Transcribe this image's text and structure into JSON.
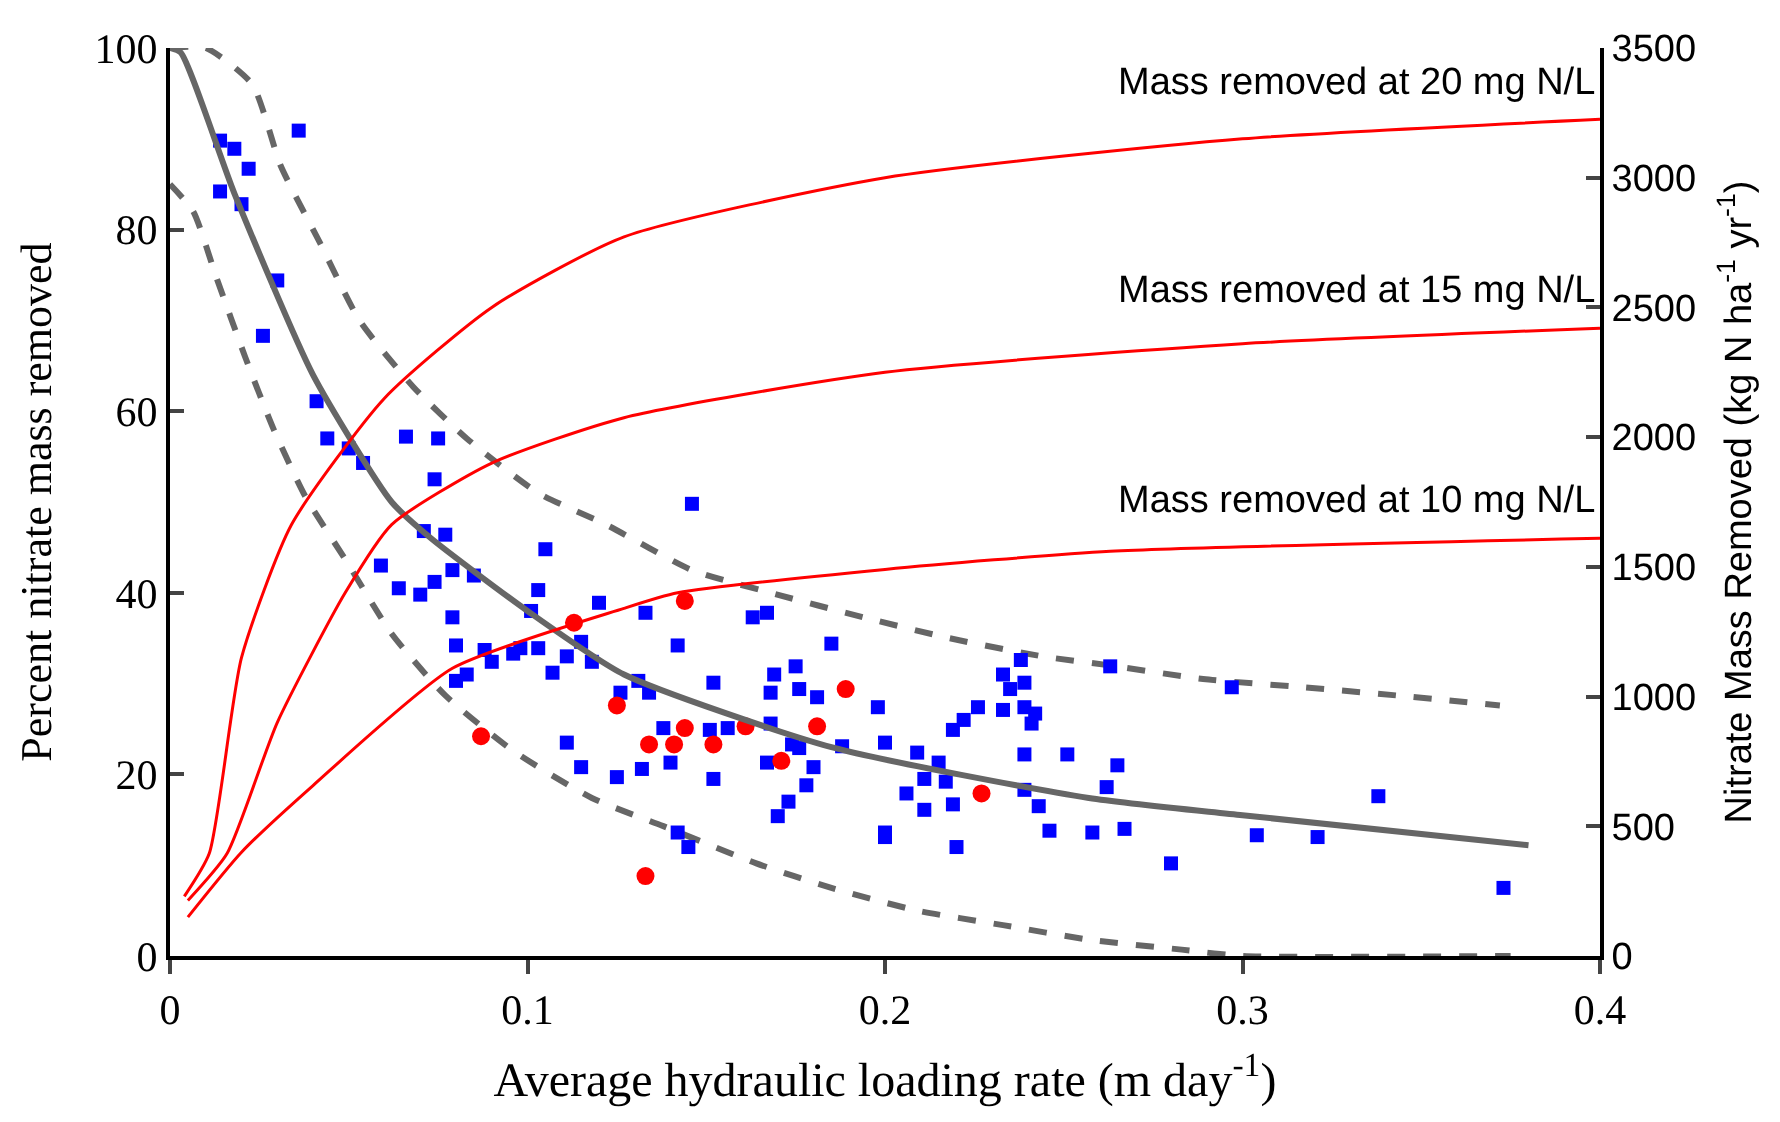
{
  "chart_data": {
    "type": "scatter",
    "xlabel": "Average hydraulic loading rate (m day$^{-1}$)",
    "ylabel": "Percent nitrate mass removed",
    "y2label": "Nitrate Mass Removed (kg N ha$^{-1}$ yr$^{-1}$)",
    "xlim": [
      0,
      0.4
    ],
    "xticks": [
      0,
      0.1,
      0.2,
      0.3,
      0.4
    ],
    "ylim": [
      0,
      100
    ],
    "yticks": [
      0,
      20,
      40,
      60,
      80,
      100
    ],
    "y2lim": [
      0,
      3500
    ],
    "y2ticks": [
      0,
      500,
      1000,
      1500,
      2000,
      2500,
      3000,
      3500
    ],
    "series": [
      {
        "type": "line",
        "color": "#ff0000",
        "axis": "y2",
        "marker": "none",
        "line_style": "solid",
        "name": "Mass removed at 20 mg N/L",
        "x": [
          0.004,
          0.011,
          0.02,
          0.034,
          0.06,
          0.09,
          0.127,
          0.2,
          0.3,
          0.4
        ],
        "values": [
          230,
          396,
          1150,
          1663,
          2150,
          2500,
          2772,
          3000,
          3150,
          3225
        ]
      },
      {
        "type": "line",
        "color": "#ff0000",
        "axis": "y2",
        "marker": "none",
        "line_style": "solid",
        "name": "Mass removed at 15 mg N/L",
        "x": [
          0.005,
          0.016,
          0.03,
          0.049,
          0.062,
          0.09,
          0.127,
          0.2,
          0.3,
          0.4
        ],
        "values": [
          214,
          396,
          900,
          1400,
          1663,
          1900,
          2075,
          2250,
          2360,
          2420
        ]
      },
      {
        "type": "line",
        "color": "#ff0000",
        "axis": "y2",
        "marker": "none",
        "line_style": "solid",
        "name": "Mass removed at 10 mg N/L",
        "x": [
          0.005,
          0.02,
          0.04,
          0.079,
          0.127,
          0.142,
          0.2,
          0.263,
          0.4
        ],
        "values": [
          150,
          400,
          657,
          1109,
          1340,
          1400,
          1490,
          1560,
          1610
        ]
      },
      {
        "type": "line",
        "color": "#666666",
        "marker": "none",
        "line_style": "dashed",
        "x": [
          0,
          0.01,
          0.023,
          0.031,
          0.042,
          0.053,
          0.068,
          0.083,
          0.103,
          0.122,
          0.146,
          0.168,
          0.194,
          0.218,
          0.244,
          0.263,
          0.289,
          0.317,
          0.343,
          0.372
        ],
        "values": [
          100,
          100,
          96,
          87,
          78.5,
          70,
          62.7,
          57,
          51,
          47.5,
          42.5,
          40,
          37.3,
          35,
          33,
          32,
          30.5,
          29.6,
          28.7,
          27.6
        ]
      },
      {
        "type": "line",
        "color": "#666666",
        "marker": "none",
        "line_style": "dashed",
        "x": [
          0,
          0.0065,
          0.013,
          0.021,
          0.029,
          0.038,
          0.049,
          0.062,
          0.077,
          0.096,
          0.118,
          0.138,
          0.164,
          0.185,
          0.209,
          0.233,
          0.257,
          0.283,
          0.3,
          0.375
        ],
        "values": [
          85,
          82,
          74.7,
          66,
          58,
          50.5,
          43.7,
          35.5,
          28.7,
          22.6,
          17.4,
          14.3,
          10.2,
          7.5,
          5,
          3.4,
          1.8,
          0.7,
          0,
          0
        ]
      },
      {
        "color": "#0000ff",
        "marker": "square",
        "x": [
          0.014,
          0.018,
          0.022,
          0.036,
          0.014,
          0.02,
          0.03,
          0.026,
          0.041,
          0.044,
          0.05,
          0.054,
          0.066,
          0.075,
          0.074,
          0.071,
          0.077,
          0.105,
          0.059,
          0.064,
          0.07,
          0.074,
          0.079,
          0.085,
          0.079,
          0.08,
          0.08,
          0.083,
          0.088,
          0.09,
          0.096,
          0.098,
          0.103,
          0.103,
          0.101,
          0.111,
          0.107,
          0.115,
          0.118,
          0.12,
          0.111,
          0.115,
          0.125,
          0.126,
          0.133,
          0.142,
          0.163,
          0.167,
          0.185,
          0.131,
          0.134,
          0.152,
          0.169,
          0.175,
          0.168,
          0.176,
          0.181,
          0.138,
          0.151,
          0.156,
          0.168,
          0.198,
          0.188,
          0.2,
          0.174,
          0.176,
          0.167,
          0.18,
          0.178,
          0.14,
          0.132,
          0.152,
          0.173,
          0.17,
          0.142,
          0.145,
          0.2,
          0.2,
          0.206,
          0.209,
          0.215,
          0.211,
          0.217,
          0.219,
          0.211,
          0.22,
          0.219,
          0.222,
          0.226,
          0.233,
          0.238,
          0.235,
          0.239,
          0.233,
          0.239,
          0.242,
          0.241,
          0.239,
          0.251,
          0.239,
          0.243,
          0.246,
          0.258,
          0.263,
          0.262,
          0.297,
          0.265,
          0.267,
          0.28,
          0.304,
          0.321,
          0.338,
          0.373,
          0.146
        ],
        "values": [
          89.8,
          88.9,
          86.7,
          90.9,
          84.2,
          82.8,
          74.4,
          68.3,
          61.1,
          57,
          55.9,
          54.3,
          57.2,
          57,
          52.5,
          46.8,
          46.4,
          44.8,
          43,
          40.5,
          39.8,
          41.2,
          42.5,
          41.9,
          37.3,
          34.2,
          30.3,
          31,
          33.7,
          32.4,
          33.3,
          33.9,
          33.9,
          40.3,
          38,
          33,
          31.2,
          34.6,
          32.4,
          38.9,
          23.5,
          20.8,
          19.7,
          29,
          37.8,
          34.2,
          37.3,
          37.8,
          34.4,
          30.3,
          29,
          30.1,
          31,
          31.9,
          29,
          29.4,
          28.5,
          25.1,
          24.9,
          25.1,
          25.6,
          27.4,
          23.1,
          23.5,
          23.3,
          22.9,
          21.3,
          20.8,
          18.8,
          21.3,
          20.6,
          19.5,
          17,
          15.4,
          13.6,
          12,
          13.6,
          13.1,
          17.9,
          22.4,
          21.3,
          19.5,
          19.2,
          16.7,
          16.1,
          12,
          24.9,
          26,
          27.4,
          31,
          32.6,
          29.4,
          30.1,
          27.1,
          27.4,
          26.7,
          25.6,
          22.2,
          22.2,
          18.3,
          16.5,
          13.8,
          13.6,
          31.9,
          18.6,
          29.6,
          21,
          14,
          10.2,
          13.3,
          13.1,
          17.6,
          7.5,
          49.8
        ]
      },
      {
        "color": "#ff0000",
        "marker": "circle",
        "x": [
          0.113,
          0.125,
          0.087,
          0.144,
          0.134,
          0.141,
          0.144,
          0.152,
          0.161,
          0.171,
          0.181,
          0.189,
          0.227,
          0.133
        ],
        "values": [
          36.7,
          27.6,
          24.2,
          39.1,
          23.3,
          23.3,
          25.1,
          23.3,
          25.3,
          21.5,
          25.3,
          29.4,
          17.9,
          8.8
        ]
      },
      {
        "type": "line",
        "color": "#666666",
        "marker": "none",
        "line_style": "solid",
        "x": [
          0,
          0.003,
          0.018,
          0.04,
          0.062,
          0.073,
          0.1,
          0.127,
          0.185,
          0.257,
          0.3,
          0.38
        ],
        "values": [
          100,
          99.5,
          84,
          64,
          50,
          46,
          38,
          31,
          23,
          17.4,
          15.5,
          12.2
        ]
      }
    ]
  }
}
